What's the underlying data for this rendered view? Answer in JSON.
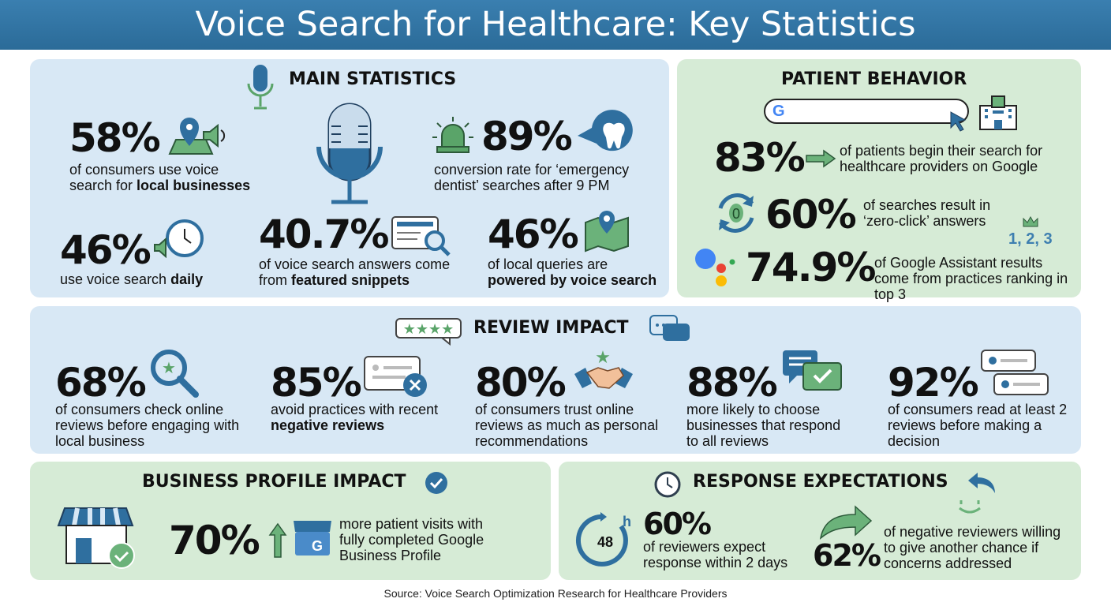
{
  "header": {
    "title": "Voice Search for Healthcare: Key Statistics"
  },
  "colors": {
    "header": "#2e6f9e",
    "blue_panel": "#d8e8f5",
    "green_panel": "#d6ebd6",
    "icon_blue": "#2f6f9f",
    "icon_green": "#5aa469"
  },
  "main": {
    "title": "MAIN STATISTICS",
    "stats": [
      {
        "value": "58%",
        "pre": "of consumers use voice search for ",
        "bold": "local businesses",
        "icon": "map-pin-speaker-icon"
      },
      {
        "value": "89%",
        "pre": "conversion rate for ‘emergency dentist’ searches after 9 PM",
        "bold": "",
        "icon": "tooth-siren-icon"
      },
      {
        "value": "46%",
        "pre": "use voice search ",
        "bold": "daily",
        "icon": "clock-speaker-icon"
      },
      {
        "value": "40.7%",
        "pre": "of voice search answers come from ",
        "bold": "featured snippets",
        "icon": "snippet-search-icon"
      },
      {
        "value": "46%",
        "pre": "of local queries are ",
        "bold": "powered by voice search",
        "icon": "map-pin-icon"
      }
    ]
  },
  "patient": {
    "title": "PATIENT BEHAVIOR",
    "ranking": "1, 2, 3",
    "stats": [
      {
        "value": "83%",
        "text": "of patients begin their search for healthcare providers on Google"
      },
      {
        "value": "60%",
        "text": "of searches result in ‘zero-click’ answers"
      },
      {
        "value": "74.9%",
        "text": "of Google Assistant results come from practices ranking in top 3"
      }
    ]
  },
  "review": {
    "title": "REVIEW IMPACT",
    "stats": [
      {
        "value": "68%",
        "pre": "of consumers check online reviews before engaging with local business",
        "bold": ""
      },
      {
        "value": "85%",
        "pre": "avoid practices with recent ",
        "bold": "negative reviews"
      },
      {
        "value": "80%",
        "pre": "of consumers trust online reviews as much as personal recommendations",
        "bold": ""
      },
      {
        "value": "88%",
        "pre": "more likely to choose businesses that respond to all reviews",
        "bold": ""
      },
      {
        "value": "92%",
        "pre": "of consumers read at least 2 reviews before making a decision",
        "bold": ""
      }
    ]
  },
  "business": {
    "title": "BUSINESS PROFILE IMPACT",
    "value": "70%",
    "text": "more patient visits with fully completed Google Business Profile"
  },
  "response": {
    "title": "RESPONSE EXPECTATIONS",
    "timer": "48",
    "timer_unit": "h",
    "stats": [
      {
        "value": "60%",
        "text": "of reviewers expect response within 2 days"
      },
      {
        "value": "62%",
        "text": "of negative reviewers willing to give another chance if concerns addressed"
      }
    ]
  },
  "source": "Source: Voice Search Optimization Research for Healthcare Providers"
}
